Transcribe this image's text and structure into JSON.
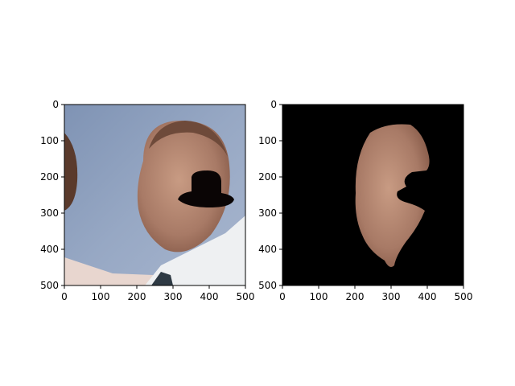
{
  "chart_data": [
    {
      "type": "image",
      "title": "",
      "xlabel": "",
      "ylabel": "",
      "xlim": [
        0,
        500
      ],
      "ylim": [
        500,
        0
      ],
      "xticks": [
        0,
        100,
        200,
        300,
        400,
        500
      ],
      "yticks": [
        0,
        100,
        200,
        300,
        400,
        500
      ],
      "content": "photo"
    },
    {
      "type": "image",
      "title": "",
      "xlabel": "",
      "ylabel": "",
      "xlim": [
        0,
        500
      ],
      "ylim": [
        500,
        0
      ],
      "xticks": [
        0,
        100,
        200,
        300,
        400,
        500
      ],
      "yticks": [
        0,
        100,
        200,
        300,
        400,
        500
      ],
      "content": "masked face",
      "background": "#000000"
    }
  ]
}
